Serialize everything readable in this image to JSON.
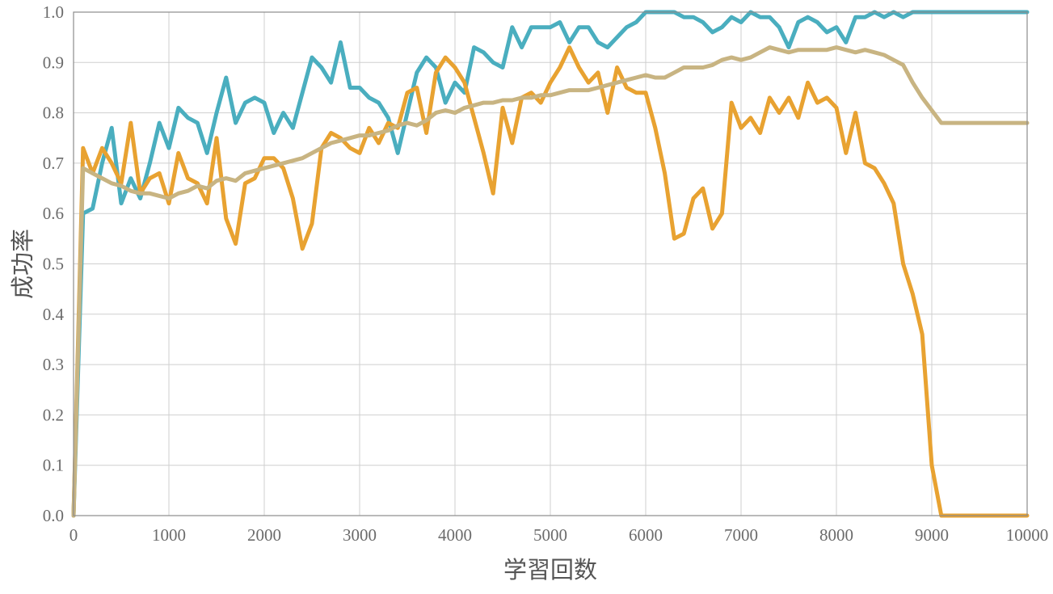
{
  "chart_data": {
    "type": "line",
    "xlabel": "学習回数",
    "ylabel": "成功率",
    "xlim": [
      0,
      10000
    ],
    "ylim": [
      0.0,
      1.0
    ],
    "x_ticks": [
      0,
      1000,
      2000,
      3000,
      4000,
      5000,
      6000,
      7000,
      8000,
      9000,
      10000
    ],
    "y_ticks": [
      "0.0",
      "0.1",
      "0.2",
      "0.3",
      "0.4",
      "0.5",
      "0.6",
      "0.7",
      "0.8",
      "0.9",
      "1.0"
    ],
    "grid": true,
    "legend": "none",
    "x": [
      0,
      100,
      200,
      300,
      400,
      500,
      600,
      700,
      800,
      900,
      1000,
      1100,
      1200,
      1300,
      1400,
      1500,
      1600,
      1700,
      1800,
      1900,
      2000,
      2100,
      2200,
      2300,
      2400,
      2500,
      2600,
      2700,
      2800,
      2900,
      3000,
      3100,
      3200,
      3300,
      3400,
      3500,
      3600,
      3700,
      3800,
      3900,
      4000,
      4100,
      4200,
      4300,
      4400,
      4500,
      4600,
      4700,
      4800,
      4900,
      5000,
      5100,
      5200,
      5300,
      5400,
      5500,
      5600,
      5700,
      5800,
      5900,
      6000,
      6100,
      6200,
      6300,
      6400,
      6500,
      6600,
      6700,
      6800,
      6900,
      7000,
      7100,
      7200,
      7300,
      7400,
      7500,
      7600,
      7700,
      7800,
      7900,
      8000,
      8100,
      8200,
      8300,
      8400,
      8500,
      8600,
      8700,
      8800,
      8900,
      9000,
      9100,
      9200,
      9300,
      9400,
      9500,
      9600,
      9700,
      9800,
      9900,
      10000
    ],
    "series": [
      {
        "color": "#4aaebf",
        "values": [
          0.0,
          0.6,
          0.61,
          0.7,
          0.77,
          0.62,
          0.67,
          0.63,
          0.7,
          0.78,
          0.73,
          0.81,
          0.79,
          0.78,
          0.72,
          0.8,
          0.87,
          0.78,
          0.82,
          0.83,
          0.82,
          0.76,
          0.8,
          0.77,
          0.84,
          0.91,
          0.89,
          0.86,
          0.94,
          0.85,
          0.85,
          0.83,
          0.82,
          0.79,
          0.72,
          0.8,
          0.88,
          0.91,
          0.89,
          0.82,
          0.86,
          0.84,
          0.93,
          0.92,
          0.9,
          0.89,
          0.97,
          0.93,
          0.97,
          0.97,
          0.97,
          0.98,
          0.94,
          0.97,
          0.97,
          0.94,
          0.93,
          0.95,
          0.97,
          0.98,
          1.0,
          1.0,
          1.0,
          1.0,
          0.99,
          0.99,
          0.98,
          0.96,
          0.97,
          0.99,
          0.98,
          1.0,
          0.99,
          0.99,
          0.97,
          0.93,
          0.98,
          0.99,
          0.98,
          0.96,
          0.97,
          0.94,
          0.99,
          0.99,
          1.0,
          0.99,
          1.0,
          0.99,
          1.0,
          1.0,
          1.0,
          1.0,
          1.0,
          1.0,
          1.0,
          1.0,
          1.0,
          1.0,
          1.0,
          1.0,
          1.0
        ]
      },
      {
        "color": "#e8a231",
        "values": [
          0.0,
          0.73,
          0.68,
          0.73,
          0.7,
          0.66,
          0.78,
          0.64,
          0.67,
          0.68,
          0.62,
          0.72,
          0.67,
          0.66,
          0.62,
          0.75,
          0.59,
          0.54,
          0.66,
          0.67,
          0.71,
          0.71,
          0.69,
          0.63,
          0.53,
          0.58,
          0.73,
          0.76,
          0.75,
          0.73,
          0.72,
          0.77,
          0.74,
          0.78,
          0.77,
          0.84,
          0.85,
          0.76,
          0.88,
          0.91,
          0.89,
          0.86,
          0.79,
          0.72,
          0.64,
          0.81,
          0.74,
          0.83,
          0.84,
          0.82,
          0.86,
          0.89,
          0.93,
          0.89,
          0.86,
          0.88,
          0.8,
          0.89,
          0.85,
          0.84,
          0.84,
          0.77,
          0.68,
          0.55,
          0.56,
          0.63,
          0.65,
          0.57,
          0.6,
          0.82,
          0.77,
          0.79,
          0.76,
          0.83,
          0.8,
          0.83,
          0.79,
          0.86,
          0.82,
          0.83,
          0.81,
          0.72,
          0.8,
          0.7,
          0.69,
          0.66,
          0.62,
          0.5,
          0.44,
          0.36,
          0.1,
          0.0,
          0.0,
          0.0,
          0.0,
          0.0,
          0.0,
          0.0,
          0.0,
          0.0,
          0.0
        ]
      },
      {
        "color": "#c8b482",
        "values": [
          0.0,
          0.69,
          0.68,
          0.67,
          0.66,
          0.655,
          0.645,
          0.64,
          0.64,
          0.635,
          0.63,
          0.64,
          0.645,
          0.655,
          0.65,
          0.665,
          0.67,
          0.665,
          0.68,
          0.685,
          0.69,
          0.695,
          0.7,
          0.705,
          0.71,
          0.72,
          0.73,
          0.74,
          0.745,
          0.75,
          0.755,
          0.755,
          0.76,
          0.765,
          0.775,
          0.78,
          0.775,
          0.785,
          0.8,
          0.805,
          0.8,
          0.81,
          0.815,
          0.82,
          0.82,
          0.825,
          0.825,
          0.83,
          0.83,
          0.835,
          0.835,
          0.84,
          0.845,
          0.845,
          0.845,
          0.85,
          0.855,
          0.86,
          0.865,
          0.87,
          0.875,
          0.87,
          0.87,
          0.88,
          0.89,
          0.89,
          0.89,
          0.895,
          0.905,
          0.91,
          0.905,
          0.91,
          0.92,
          0.93,
          0.925,
          0.92,
          0.925,
          0.925,
          0.925,
          0.925,
          0.93,
          0.925,
          0.92,
          0.925,
          0.92,
          0.915,
          0.905,
          0.895,
          0.86,
          0.83,
          0.805,
          0.78,
          0.78,
          0.78,
          0.78,
          0.78,
          0.78,
          0.78,
          0.78,
          0.78,
          0.78
        ]
      }
    ]
  }
}
